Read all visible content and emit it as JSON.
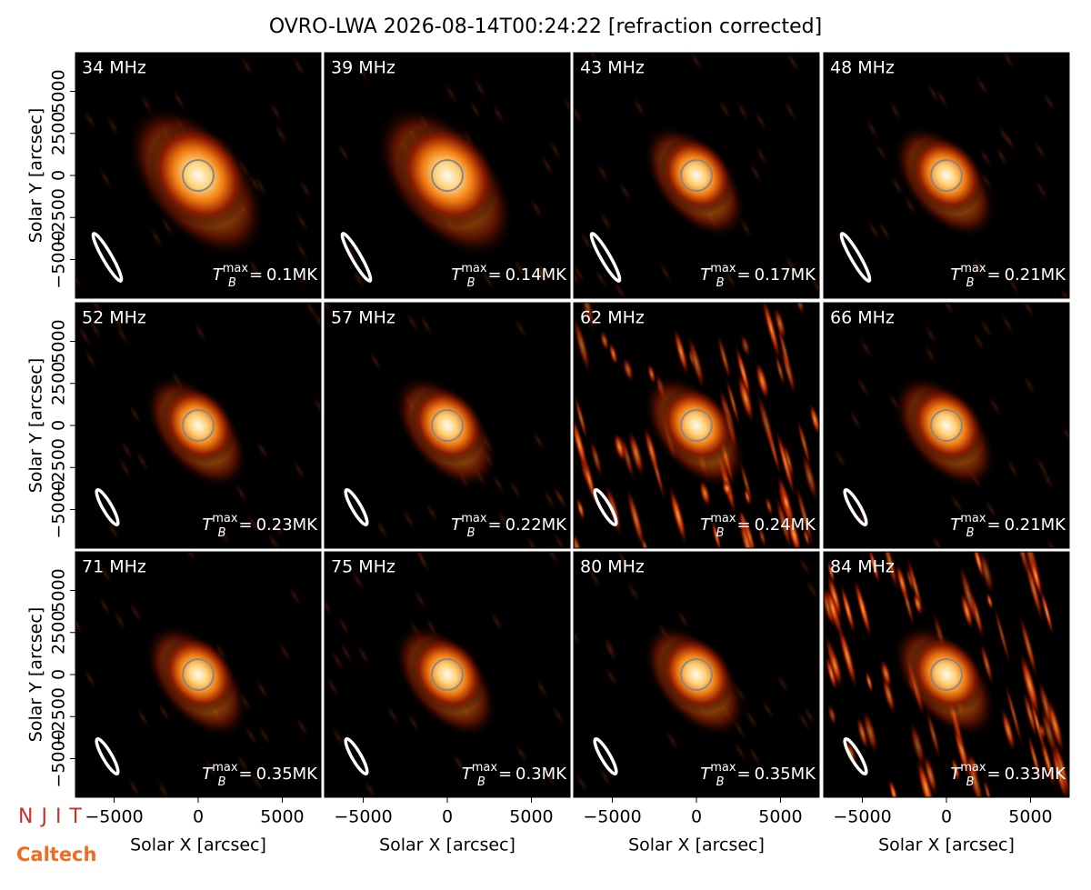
{
  "title": "OVRO-LWA 2026-08-14T00:24:22 [refraction corrected]",
  "axes": {
    "xlabel": "Solar X [arcsec]",
    "ylabel": "Solar Y [arcsec]",
    "xlim": [
      -7300,
      7300
    ],
    "ylim": [
      -7300,
      7300
    ],
    "xticks": [
      {
        "value": -5000,
        "label": "−5000"
      },
      0,
      5000
    ],
    "yticks": [
      {
        "value": -5000,
        "label": "−5000"
      },
      {
        "value": -2500,
        "label": "−2500"
      },
      0,
      2500,
      5000
    ]
  },
  "tb_symbol": {
    "base": "T",
    "sub": "B",
    "sup": "max",
    "eq": "="
  },
  "panels": [
    {
      "freq": "34 MHz",
      "tmax": "0.1MK"
    },
    {
      "freq": "39 MHz",
      "tmax": "0.14MK"
    },
    {
      "freq": "43 MHz",
      "tmax": "0.17MK"
    },
    {
      "freq": "48 MHz",
      "tmax": "0.21MK"
    },
    {
      "freq": "52 MHz",
      "tmax": "0.23MK"
    },
    {
      "freq": "57 MHz",
      "tmax": "0.22MK"
    },
    {
      "freq": "62 MHz",
      "tmax": "0.24MK"
    },
    {
      "freq": "66 MHz",
      "tmax": "0.21MK"
    },
    {
      "freq": "71 MHz",
      "tmax": "0.35MK"
    },
    {
      "freq": "75 MHz",
      "tmax": "0.3MK"
    },
    {
      "freq": "80 MHz",
      "tmax": "0.35MK"
    },
    {
      "freq": "84 MHz",
      "tmax": "0.33MK"
    }
  ],
  "logos": {
    "njit": "NJIT",
    "caltech": "Caltech"
  }
}
